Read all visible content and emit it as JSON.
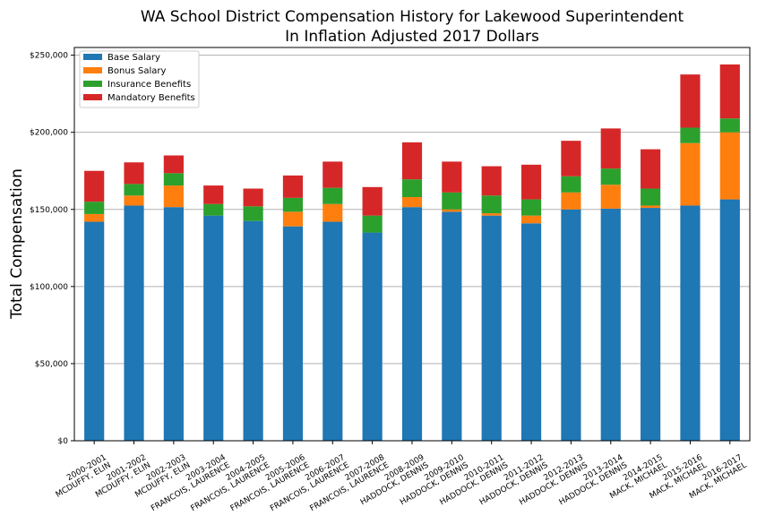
{
  "chart_data": {
    "type": "bar",
    "stacked": true,
    "title": "WA School District Compensation History for Lakewood Superintendent",
    "subtitle": "In Inflation Adjusted 2017 Dollars",
    "xlabel": "",
    "ylabel": "Total Compensation",
    "ylim": [
      0,
      255000
    ],
    "yticks": [
      0,
      50000,
      100000,
      150000,
      200000,
      250000
    ],
    "ytick_labels": [
      "$0",
      "$50,000",
      "$100,000",
      "$150,000",
      "$200,000",
      "$250,000"
    ],
    "grid": "horizontal",
    "legend_position": "top-left",
    "categories": [
      [
        "2000-2001",
        "MCDUFFY, ELIN"
      ],
      [
        "2001-2002",
        "MCDUFFY, ELIN"
      ],
      [
        "2002-2003",
        "MCDUFFY, ELIN"
      ],
      [
        "2003-2004",
        "FRANCOIS, LAURENCE"
      ],
      [
        "2004-2005",
        "FRANCOIS, LAURENCE"
      ],
      [
        "2005-2006",
        "FRANCOIS, LAURENCE"
      ],
      [
        "2006-2007",
        "FRANCOIS, LAURENCE"
      ],
      [
        "2007-2008",
        "FRANCOIS, LAURENCE"
      ],
      [
        "2008-2009",
        "HADDOCK, DENNIS"
      ],
      [
        "2009-2010",
        "HADDOCK, DENNIS"
      ],
      [
        "2010-2011",
        "HADDOCK, DENNIS"
      ],
      [
        "2011-2012",
        "HADDOCK, DENNIS"
      ],
      [
        "2012-2013",
        "HADDOCK, DENNIS"
      ],
      [
        "2013-2014",
        "HADDOCK, DENNIS"
      ],
      [
        "2014-2015",
        "MACK, MICHAEL"
      ],
      [
        "2015-2016",
        "MACK, MICHAEL"
      ],
      [
        "2016-2017",
        "MACK, MICHAEL"
      ]
    ],
    "series": [
      {
        "name": "Base Salary",
        "color": "#1f77b4",
        "values": [
          142000,
          152500,
          151500,
          146000,
          142500,
          139000,
          142000,
          135000,
          151500,
          148500,
          146000,
          141000,
          150000,
          150500,
          151000,
          152500,
          156500
        ]
      },
      {
        "name": "Bonus Salary",
        "color": "#ff7f0e",
        "values": [
          5000,
          6500,
          14000,
          0,
          0,
          9500,
          11500,
          0,
          6500,
          1500,
          1500,
          5000,
          11000,
          15500,
          1500,
          40500,
          43500
        ]
      },
      {
        "name": "Insurance Benefits",
        "color": "#2ca02c",
        "values": [
          8000,
          7500,
          8000,
          7500,
          9500,
          9000,
          10500,
          11000,
          11500,
          11000,
          11500,
          10500,
          10500,
          10500,
          11000,
          10000,
          9000
        ]
      },
      {
        "name": "Mandatory Benefits",
        "color": "#d62728",
        "values": [
          20000,
          14000,
          11500,
          12000,
          11500,
          14500,
          17000,
          18500,
          24000,
          20000,
          19000,
          22500,
          23000,
          26000,
          25500,
          34500,
          35000
        ]
      }
    ]
  }
}
